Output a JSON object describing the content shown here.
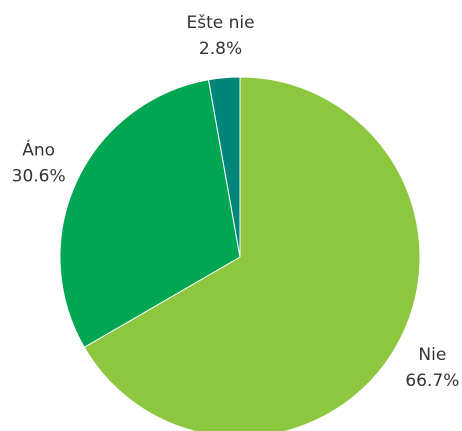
{
  "chart_data": {
    "type": "pie",
    "categories": [
      "Nie",
      "Áno",
      "Ešte nie"
    ],
    "values": [
      66.7,
      30.6,
      2.8
    ],
    "value_labels": [
      "66.7%",
      "30.6%",
      "2.8%"
    ],
    "colors": [
      "#8dc63f",
      "#00a651",
      "#00857a"
    ]
  }
}
